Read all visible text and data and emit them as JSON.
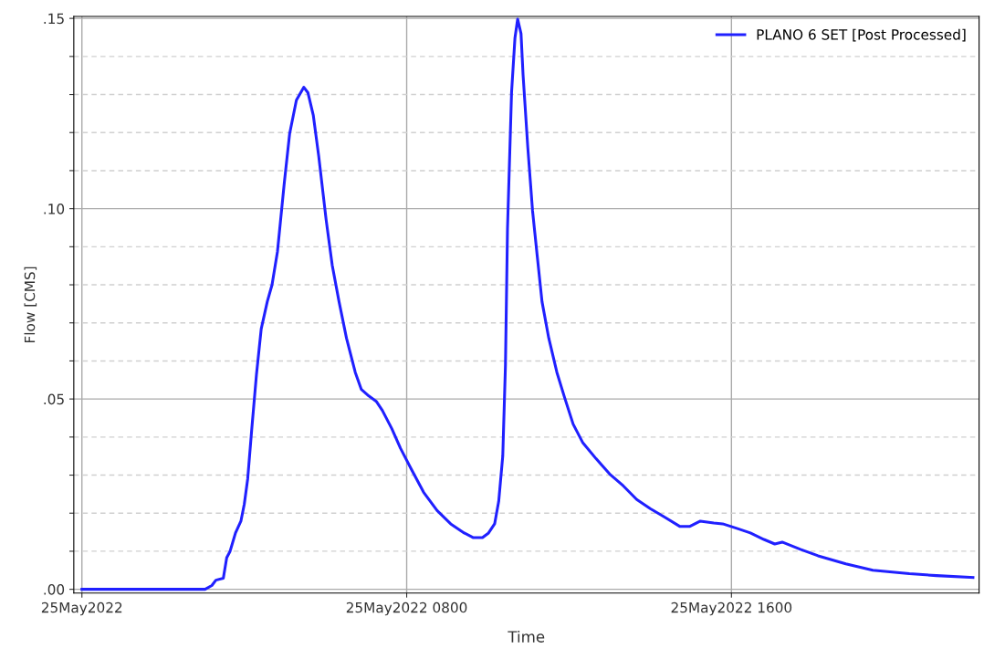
{
  "chart_data": {
    "type": "line",
    "xlabel": "Time",
    "ylabel": "Flow [CMS]",
    "xlim": [
      "2022-05-24T23:48",
      "2022-05-25T22:06"
    ],
    "xticks": [
      {
        "value": "2022-05-25T00:00",
        "label": "25May2022"
      },
      {
        "value": "2022-05-25T08:00",
        "label": "25May2022 0800"
      },
      {
        "value": "2022-05-25T16:00",
        "label": "25May2022 1600"
      }
    ],
    "ylim": [
      -0.001,
      0.1505
    ],
    "yticks": [
      {
        "value": 0,
        "label": ".00"
      },
      {
        "value": 0.01,
        "label": null
      },
      {
        "value": 0.02,
        "label": null
      },
      {
        "value": 0.03,
        "label": null
      },
      {
        "value": 0.04,
        "label": null
      },
      {
        "value": 0.05,
        "label": ".05"
      },
      {
        "value": 0.06,
        "label": null
      },
      {
        "value": 0.07,
        "label": null
      },
      {
        "value": 0.08,
        "label": null
      },
      {
        "value": 0.09,
        "label": null
      },
      {
        "value": 0.1,
        "label": ".10"
      },
      {
        "value": 0.11,
        "label": null
      },
      {
        "value": 0.12,
        "label": null
      },
      {
        "value": 0.13,
        "label": null
      },
      {
        "value": 0.14,
        "label": null
      },
      {
        "value": 0.15,
        "label": ".15"
      }
    ],
    "grid": true,
    "legend": "top right",
    "marker": "none",
    "line_style": "solid",
    "series": [
      {
        "name": "PLANO 6 SET [Post Processed]",
        "color": "#2020ff",
        "x": [
          "2022-05-25T00:00",
          "2022-05-25T03:02",
          "2022-05-25T03:12",
          "2022-05-25T03:18",
          "2022-05-25T03:29",
          "2022-05-25T03:34",
          "2022-05-25T03:39",
          "2022-05-25T03:47",
          "2022-05-25T03:55",
          "2022-05-25T04:00",
          "2022-05-25T04:05",
          "2022-05-25T04:11",
          "2022-05-25T04:18",
          "2022-05-25T04:25",
          "2022-05-25T04:34",
          "2022-05-25T04:41",
          "2022-05-25T04:49",
          "2022-05-25T04:59",
          "2022-05-25T05:07",
          "2022-05-25T05:17",
          "2022-05-25T05:28",
          "2022-05-25T05:34",
          "2022-05-25T05:42",
          "2022-05-25T05:50",
          "2022-05-25T06:01",
          "2022-05-25T06:10",
          "2022-05-25T06:20",
          "2022-05-25T06:31",
          "2022-05-25T06:44",
          "2022-05-25T06:53",
          "2022-05-25T07:04",
          "2022-05-25T07:15",
          "2022-05-25T07:24",
          "2022-05-25T07:38",
          "2022-05-25T07:51",
          "2022-05-25T08:07",
          "2022-05-25T08:25",
          "2022-05-25T08:45",
          "2022-05-25T09:05",
          "2022-05-25T09:25",
          "2022-05-25T09:38",
          "2022-05-25T09:52",
          "2022-05-25T10:01",
          "2022-05-25T10:10",
          "2022-05-25T10:16",
          "2022-05-25T10:22",
          "2022-05-25T10:26",
          "2022-05-25T10:29",
          "2022-05-25T10:35",
          "2022-05-25T10:40",
          "2022-05-25T10:44",
          "2022-05-25T10:49",
          "2022-05-25T10:52",
          "2022-05-25T10:59",
          "2022-05-25T11:06",
          "2022-05-25T11:13",
          "2022-05-25T11:20",
          "2022-05-25T11:30",
          "2022-05-25T11:42",
          "2022-05-25T11:53",
          "2022-05-25T12:06",
          "2022-05-25T12:20",
          "2022-05-25T12:40",
          "2022-05-25T13:00",
          "2022-05-25T13:20",
          "2022-05-25T13:40",
          "2022-05-25T14:00",
          "2022-05-25T14:20",
          "2022-05-25T14:44",
          "2022-05-25T14:58",
          "2022-05-25T15:14",
          "2022-05-25T15:34",
          "2022-05-25T15:47",
          "2022-05-25T16:08",
          "2022-05-25T16:28",
          "2022-05-25T16:48",
          "2022-05-25T17:04",
          "2022-05-25T17:15",
          "2022-05-25T17:42",
          "2022-05-25T18:08",
          "2022-05-25T18:49",
          "2022-05-25T19:29",
          "2022-05-25T20:23",
          "2022-05-25T21:03",
          "2022-05-25T21:57"
        ],
        "values": [
          0,
          0,
          0.001,
          0.0024,
          0.0029,
          0.0083,
          0.01,
          0.0148,
          0.0179,
          0.0224,
          0.029,
          0.042,
          0.0565,
          0.0684,
          0.0756,
          0.08,
          0.0887,
          0.1066,
          0.1197,
          0.1285,
          0.1319,
          0.1305,
          0.1245,
          0.1138,
          0.097,
          0.0851,
          0.0756,
          0.066,
          0.057,
          0.0525,
          0.0508,
          0.0494,
          0.047,
          0.0422,
          0.037,
          0.0315,
          0.0255,
          0.0207,
          0.0172,
          0.0148,
          0.0136,
          0.0136,
          0.0148,
          0.0172,
          0.0231,
          0.035,
          0.059,
          0.0947,
          0.1305,
          0.1448,
          0.1498,
          0.146,
          0.1352,
          0.1161,
          0.0995,
          0.0875,
          0.0756,
          0.066,
          0.057,
          0.0506,
          0.0434,
          0.0386,
          0.0343,
          0.0303,
          0.0272,
          0.0236,
          0.0212,
          0.0191,
          0.0165,
          0.0165,
          0.0179,
          0.0174,
          0.0172,
          0.016,
          0.0148,
          0.0131,
          0.0119,
          0.0124,
          0.0105,
          0.0088,
          0.0067,
          0.005,
          0.0041,
          0.0036,
          0.0031
        ]
      }
    ]
  }
}
